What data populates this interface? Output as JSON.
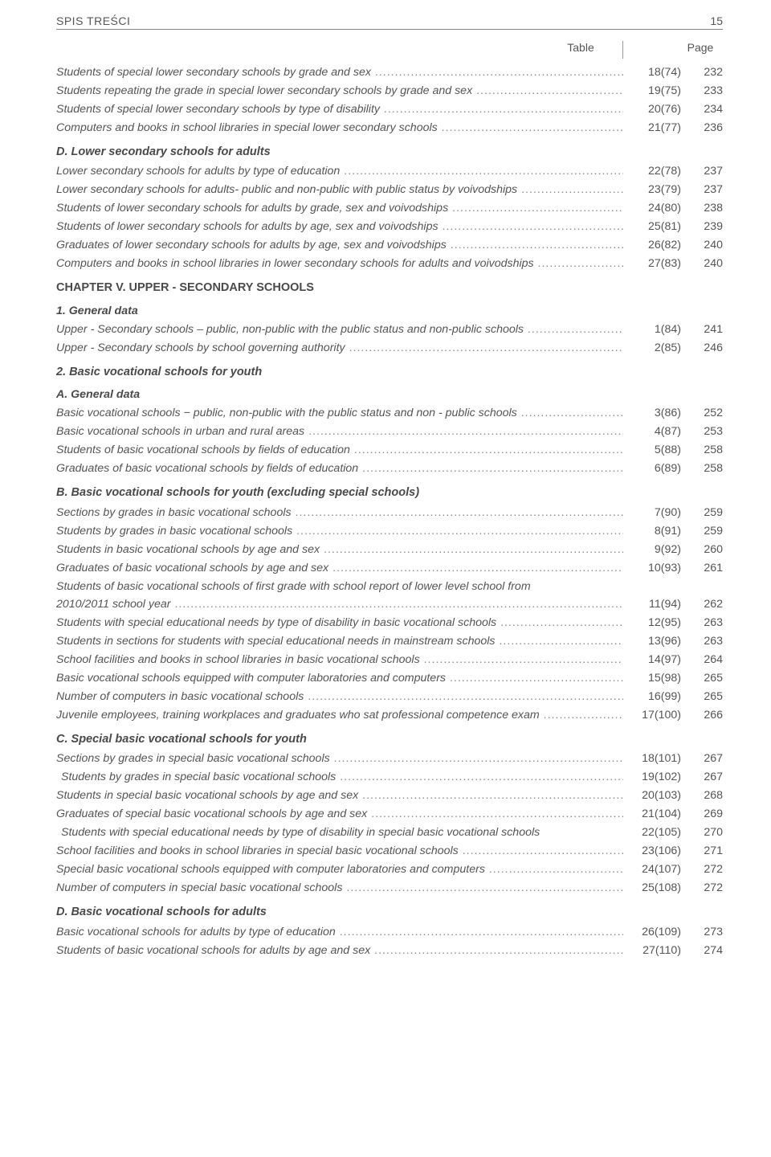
{
  "header": {
    "title": "SPIS TREŚCI",
    "page_number": "15"
  },
  "columns": {
    "table": "Table",
    "page": "Page"
  },
  "sections": [
    {
      "rows": [
        {
          "label": "Students of special lower secondary schools by grade and sex",
          "tbl": "18(74)",
          "pg": "232"
        },
        {
          "label": "Students repeating the grade in special lower secondary schools by grade and sex",
          "tbl": "19(75)",
          "pg": "233"
        },
        {
          "label": "Students of special lower secondary schools by type of disability",
          "tbl": "20(76)",
          "pg": "234"
        },
        {
          "label": "Computers and books in school libraries in special lower secondary schools",
          "tbl": "21(77)",
          "pg": "236"
        }
      ]
    },
    {
      "heading": "D.  Lower secondary schools for adults",
      "rows": [
        {
          "label": "Lower secondary schools for adults by type of education",
          "tbl": "22(78)",
          "pg": "237"
        },
        {
          "label": "Lower secondary schools for adults- public and non-public with public status by voivodships",
          "tbl": "23(79)",
          "pg": "237"
        },
        {
          "label": "Students of lower secondary schools for adults by grade, sex and voivodships",
          "tbl": "24(80)",
          "pg": "238"
        },
        {
          "label": "Students of lower secondary schools for adults by age, sex and voivodships",
          "tbl": "25(81)",
          "pg": "239"
        },
        {
          "label": "Graduates of lower secondary schools for adults by age, sex and voivodships",
          "tbl": "26(82)",
          "pg": "240"
        },
        {
          "label": "Computers and books in school libraries in lower secondary schools for adults and voivodships",
          "tbl": "27(83)",
          "pg": "240"
        }
      ]
    },
    {
      "heading": "CHAPTER V. UPPER - SECONDARY SCHOOLS",
      "heading_upright": true,
      "subheading": "1. General data",
      "rows": [
        {
          "label": "Upper - Secondary  schools – public,  non-public  with  the  public  status  and   non-public  schools",
          "tbl": "1(84)",
          "pg": "241"
        },
        {
          "label": "Upper - Secondary  schools  by  school  governing  authority",
          "tbl": "2(85)",
          "pg": "246"
        }
      ]
    },
    {
      "heading": "2. Basic vocational schools for youth",
      "subheading": "A. General data",
      "rows": [
        {
          "label": "Basic vocational  schools − public, non-public with the public status and  non - public schools",
          "tbl": "3(86)",
          "pg": "252"
        },
        {
          "label": "Basic vocational schools  in urban and rural areas",
          "tbl": "4(87)",
          "pg": "253"
        },
        {
          "label": "Students of basic vocational schools by fields of education",
          "tbl": "5(88)",
          "pg": "258"
        },
        {
          "label": "Graduates of basic vocational schools by fields of education",
          "tbl": "6(89)",
          "pg": "258"
        }
      ]
    },
    {
      "heading": "B.  Basic vocational schools for youth (excluding special schools)",
      "rows": [
        {
          "label": "Sections  by  grades  in  basic vocational  schools",
          "tbl": "7(90)",
          "pg": "259"
        },
        {
          "label": "Students  by  grades  in  basic vocational  schools",
          "tbl": "8(91)",
          "pg": "259"
        },
        {
          "label": "Students  in  basic vocational schools   by  age  and  sex",
          "tbl": "9(92)",
          "pg": "260"
        },
        {
          "label": "Graduates of  basic vocational  schools  by  age  and  sex",
          "tbl": "10(93)",
          "pg": "261"
        }
      ],
      "wrap_rows": [
        {
          "line1": "Students  of  basic vocational schools of  first grade with  school  report  of  lower level  school  from",
          "line2": "2010/2011  school  year",
          "tbl": "11(94)",
          "pg": "262"
        }
      ],
      "rows_after": [
        {
          "label": "Students with special educational needs  by type of  disability  in  basic vocational schools",
          "tbl": "12(95)",
          "pg": "263"
        },
        {
          "label": "Students in sections for students with special educational needs in mainstream schools",
          "tbl": "13(96)",
          "pg": "263"
        },
        {
          "label": "School facilities  and  books  in  school  libraries  in  basic vocational  schools",
          "tbl": "14(97)",
          "pg": "264"
        },
        {
          "label": "Basic vocational schools  equipped  with  computer  laboratories  and  computers",
          "tbl": "15(98)",
          "pg": "265"
        },
        {
          "label": "Number  of  computers  in  basic vocational  schools",
          "tbl": "16(99)",
          "pg": "265"
        },
        {
          "label": "Juvenile employees, training workplaces and graduates who sat professional competence exam",
          "tbl": "17(100)",
          "pg": "266"
        }
      ]
    },
    {
      "heading": "C.  Special basic vocational schools for youth",
      "rows": [
        {
          "label": "Sections  by  grades  in  special basic vocational  schools",
          "tbl": "18(101)",
          "pg": "267"
        },
        {
          "label": " Students  by  grades  in  special basic vocational  schools",
          "tbl": "19(102)",
          "pg": "267",
          "indent": true
        },
        {
          "label": "Students  in special  basic vocational schools   by  age  and  sex",
          "tbl": "20(103)",
          "pg": "268"
        },
        {
          "label": "Graduates  of  special basic vocational  schools  by  age  and  sex",
          "tbl": "21(104)",
          "pg": "269"
        },
        {
          "label": " Students with special educational needs by type of disability in special basic vocational schools",
          "tbl": "22(105)",
          "pg": "270",
          "no_dots": true,
          "indent": true
        },
        {
          "label": "School facilities  and  books  in  school  libraries  in  special basic vocational  schools",
          "tbl": "23(106)",
          "pg": "271"
        },
        {
          "label": "Special basic vocational schools  equipped  with  computer  laboratories  and  computers",
          "tbl": "24(107)",
          "pg": "272"
        },
        {
          "label": "Number  of  computers  in  special basic vocational  schools",
          "tbl": "25(108)",
          "pg": "272"
        }
      ]
    },
    {
      "heading": "D.   Basic vocational schools for adults",
      "rows": [
        {
          "label": "Basic vocational schools for adults by type of education",
          "tbl": "26(109)",
          "pg": "273"
        },
        {
          "label": "Students of basic vocational schools for adults  by age and sex",
          "tbl": "27(110)",
          "pg": "274"
        }
      ]
    }
  ]
}
